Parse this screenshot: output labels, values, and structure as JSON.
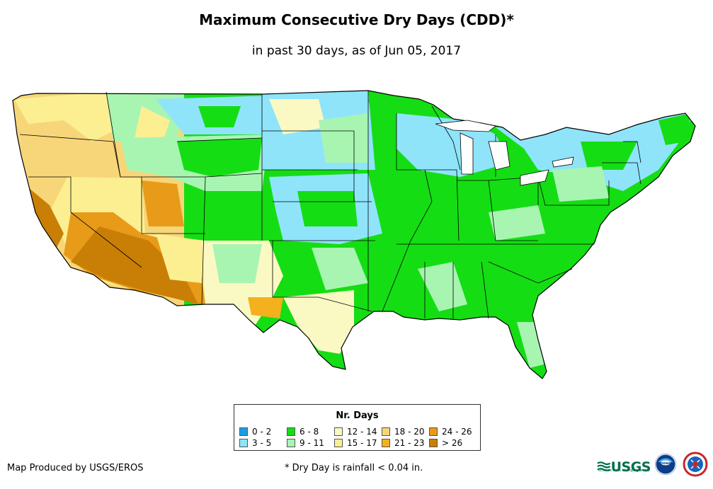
{
  "header": {
    "title": "Maximum Consecutive Dry Days (CDD)*",
    "subtitle": "in past 30 days, as of Jun 05, 2017"
  },
  "legend": {
    "title": "Nr. Days",
    "items": [
      {
        "label": "0 - 2",
        "color": "#1a9ee8"
      },
      {
        "label": "3 - 5",
        "color": "#8fe4fa"
      },
      {
        "label": "6 - 8",
        "color": "#15dd14"
      },
      {
        "label": "9 - 11",
        "color": "#a8f5b2"
      },
      {
        "label": "12 - 14",
        "color": "#fbf9c3"
      },
      {
        "label": "15 - 17",
        "color": "#fbef91"
      },
      {
        "label": "18 - 20",
        "color": "#f7d679"
      },
      {
        "label": "21 - 23",
        "color": "#f4b11d"
      },
      {
        "label": "24 - 26",
        "color": "#e89b19"
      },
      {
        "label": "> 26",
        "color": "#c97f06"
      }
    ]
  },
  "footer": {
    "producer": "Map Produced by USGS/EROS",
    "note": "* Dry Day is rainfall < 0.04 in."
  },
  "logos": {
    "usgs": "USGS",
    "usgs_tagline": "science for a changing world",
    "noaa": "noaa",
    "nws": "NATIONAL WEATHER SERVICE"
  },
  "map": {
    "region": "Contiguous United States",
    "icons": [
      "usgs-logo",
      "noaa-logo",
      "nws-logo"
    ]
  }
}
